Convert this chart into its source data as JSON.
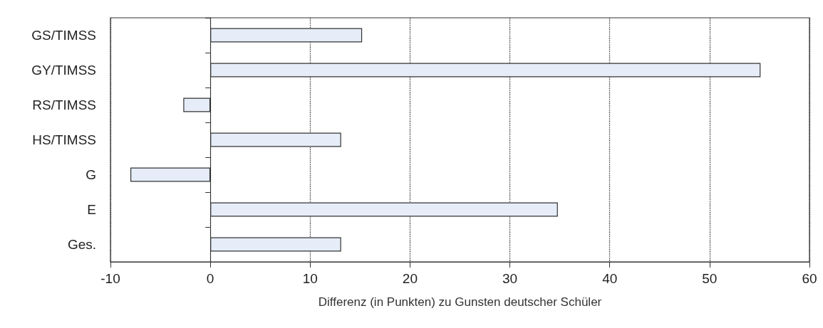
{
  "chart_data": {
    "type": "bar",
    "orientation": "horizontal",
    "categories": [
      "GS/TIMSS",
      "GY/TIMSS",
      "RS/TIMSS",
      "HS/TIMSS",
      "G",
      "E",
      "Ges."
    ],
    "values": [
      15.2,
      55.1,
      -2.7,
      13.1,
      -8.0,
      34.8,
      13.1
    ],
    "color": "#e6edf8",
    "xlabel": "Differenz (in Punkten) zu Gunsten deutscher Schüler",
    "xlim": [
      -10,
      60
    ],
    "xticks": [
      -10,
      0,
      10,
      20,
      30,
      40,
      50,
      60
    ],
    "grid": "x"
  }
}
